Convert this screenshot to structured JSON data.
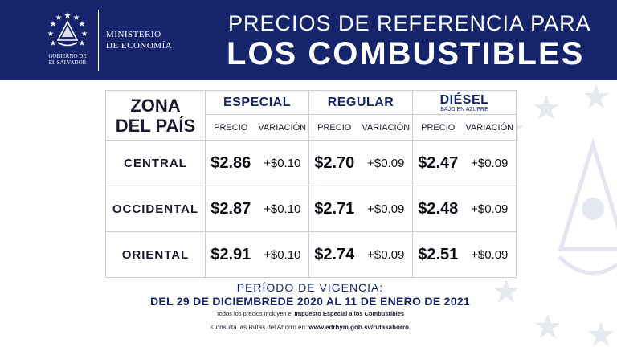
{
  "header": {
    "gov_label": "GOBIERNO DE\nEL SALVADOR",
    "ministry": "MINISTERIO\nDE ECONOMÍA",
    "title_line1": "PRECIOS DE REFERENCIA PARA",
    "title_line2": "LOS COMBUSTIBLES",
    "background_color": "#15246b"
  },
  "table": {
    "zone_header": "ZONA\nDEL PAÍS",
    "fuels": [
      {
        "name": "ESPECIAL",
        "subtitle": ""
      },
      {
        "name": "REGULAR",
        "subtitle": ""
      },
      {
        "name": "DIÉSEL",
        "subtitle": "BAJO EN AZUFRE"
      }
    ],
    "price_header": "PRECIO",
    "variation_header": "VARIACIÓN",
    "rows": [
      {
        "zone": "CENTRAL",
        "especial_price": "$2.86",
        "especial_var": "+$0.10",
        "regular_price": "$2.70",
        "regular_var": "+$0.09",
        "diesel_price": "$2.47",
        "diesel_var": "+$0.09"
      },
      {
        "zone": "OCCIDENTAL",
        "especial_price": "$2.87",
        "especial_var": "+$0.10",
        "regular_price": "$2.71",
        "regular_var": "+$0.09",
        "diesel_price": "$2.48",
        "diesel_var": "+$0.09"
      },
      {
        "zone": "ORIENTAL",
        "especial_price": "$2.91",
        "especial_var": "+$0.10",
        "regular_price": "$2.74",
        "regular_var": "+$0.09",
        "diesel_price": "$2.51",
        "diesel_var": "+$0.09"
      }
    ]
  },
  "footer": {
    "period_label": "PERÍODO DE VIGENCIA:",
    "period_dates": "DEL 29 DE DICIEMBREDE 2020 AL 11 DE ENERO DE 2021",
    "note_prefix": "Todos los precios incluyen el ",
    "note_bold": "Impuesto Especial a los Combustibles",
    "consult_prefix": "Consulta las Rutas del Ahorro en: ",
    "consult_url": "www.edrhym.gob.sv/rutasahorro"
  },
  "icons": {
    "seal": "el-salvador-seal-icon",
    "background": "coat-of-arms-watermark-icon"
  }
}
